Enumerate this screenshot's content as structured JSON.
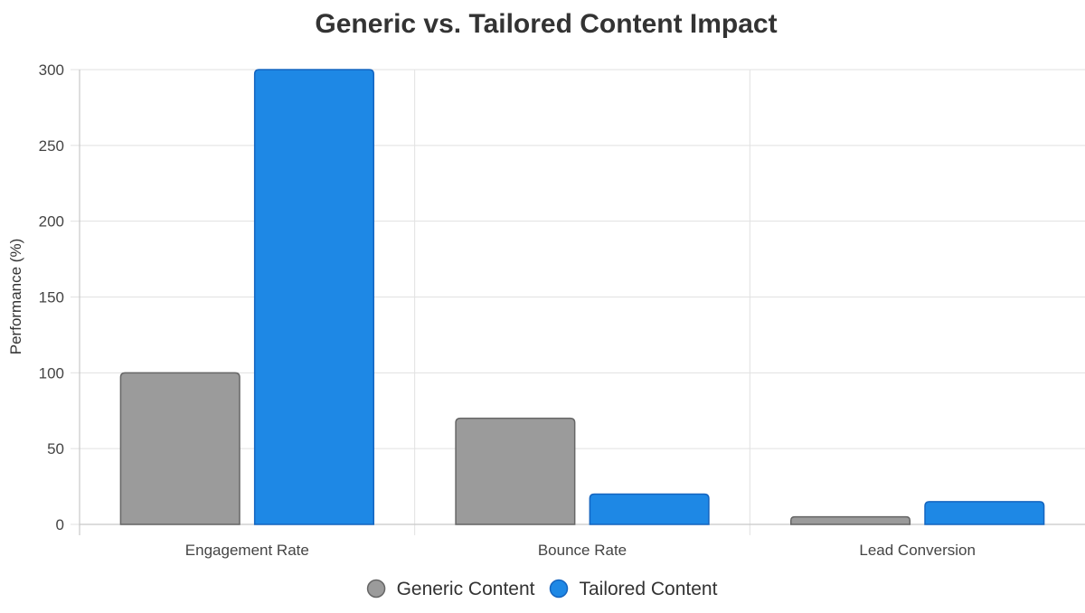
{
  "chart_data": {
    "type": "bar",
    "title": "Generic vs. Tailored Content Impact",
    "xlabel": "",
    "ylabel": "Performance (%)",
    "ylim": [
      0,
      300
    ],
    "yticks": [
      0,
      50,
      100,
      150,
      200,
      250,
      300
    ],
    "categories": [
      "Engagement Rate",
      "Bounce Rate",
      "Lead Conversion"
    ],
    "series": [
      {
        "name": "Generic Content",
        "values": [
          100,
          70,
          5
        ],
        "color": "#9b9b9b",
        "border_color": "#666666"
      },
      {
        "name": "Tailored Content",
        "values": [
          300,
          20,
          15
        ],
        "color": "#1e88e5",
        "border_color": "#1565c0"
      }
    ],
    "grid": true,
    "legend": "bottom-center"
  }
}
